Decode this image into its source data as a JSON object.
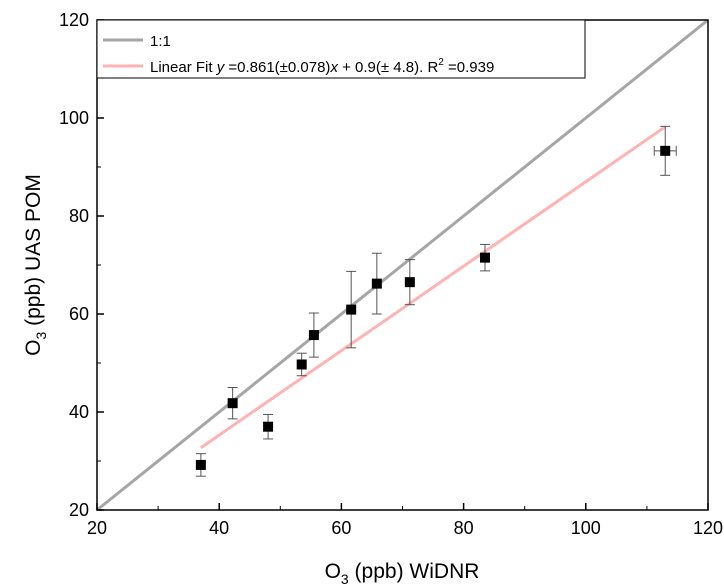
{
  "chart_data": {
    "type": "scatter",
    "xlabel": {
      "prefix": "O",
      "sub": "3",
      "suffix": " (ppb) WiDNR"
    },
    "ylabel": {
      "prefix": "O",
      "sub": "3",
      "suffix": " (ppb) UAS POM"
    },
    "xlim": [
      20,
      120
    ],
    "ylim": [
      20,
      120
    ],
    "x_ticks": [
      "20",
      "40",
      "60",
      "80",
      "100",
      "120"
    ],
    "y_ticks": [
      "20",
      "40",
      "60",
      "80",
      "100",
      "120"
    ],
    "grid": false,
    "legend_position": "top-left",
    "points": [
      {
        "x": 37.0,
        "y": 29.2,
        "y_err": 2.3,
        "x_err": 0
      },
      {
        "x": 42.2,
        "y": 41.8,
        "y_err": 3.2,
        "x_err": 0
      },
      {
        "x": 48.0,
        "y": 37.0,
        "y_err": 2.5,
        "x_err": 0
      },
      {
        "x": 53.5,
        "y": 49.7,
        "y_err": 2.3,
        "x_err": 0
      },
      {
        "x": 55.5,
        "y": 55.7,
        "y_err": 4.5,
        "x_err": 0
      },
      {
        "x": 61.6,
        "y": 60.9,
        "y_err": 7.8,
        "x_err": 0
      },
      {
        "x": 65.8,
        "y": 66.2,
        "y_err": 6.2,
        "x_err": 0
      },
      {
        "x": 71.2,
        "y": 66.5,
        "y_err": 4.6,
        "x_err": 0
      },
      {
        "x": 83.5,
        "y": 71.5,
        "y_err": 2.7,
        "x_err": 0
      },
      {
        "x": 113.0,
        "y": 93.3,
        "y_err": 5.0,
        "x_err": 1.8
      }
    ],
    "lines": [
      {
        "label": "1:1",
        "color": "#a6a6a6",
        "x": [
          20,
          120
        ],
        "y": [
          20,
          120
        ]
      },
      {
        "label": "Linear Fit",
        "color": "#ffb3b3",
        "x": [
          37,
          113
        ],
        "y": [
          32.7,
          98.2
        ]
      }
    ],
    "legend": [
      {
        "label": "1:1",
        "color": "#a6a6a6"
      },
      {
        "label": "Linear Fit",
        "fit_pre": "Linear Fit ",
        "fit_y": "y",
        "fit_mid": " =0.861(±0.078)",
        "fit_x": "x",
        "fit_post": " + 0.9(± 4.8).  R",
        "fit_sup": "2",
        "fit_end": " =0.939",
        "color": "#ffb3b3"
      }
    ],
    "marker_color": "#000000",
    "errorbar_color": "#555555"
  }
}
